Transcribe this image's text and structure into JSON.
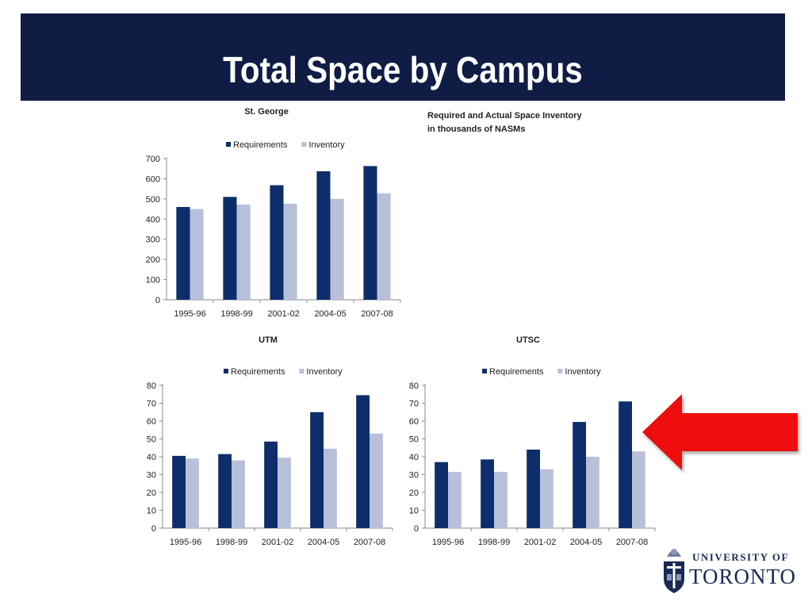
{
  "slide": {
    "title": "Total Space by Campus",
    "note_line1": "Required and Actual Space Inventory",
    "note_line2": "in thousands of NASMs"
  },
  "logo": {
    "line1": "UNIVERSITY OF",
    "line2": "TORONTO"
  },
  "colors": {
    "requirements": "#0d2d6b",
    "inventory": "#b7bfd9",
    "header": "#0f1d45",
    "arrow": "#ee1111"
  },
  "chart_data": [
    {
      "type": "bar",
      "title": "St. George",
      "categories": [
        "1995-96",
        "1998-99",
        "2001-02",
        "2004-05",
        "2007-08"
      ],
      "series": [
        {
          "name": "Requirements",
          "values": [
            460,
            510,
            568,
            637,
            663
          ]
        },
        {
          "name": "Inventory",
          "values": [
            450,
            472,
            476,
            500,
            528
          ]
        }
      ],
      "ylim": [
        0,
        700
      ],
      "yticks": [
        0,
        100,
        200,
        300,
        400,
        500,
        600,
        700
      ],
      "legend": "top"
    },
    {
      "type": "bar",
      "title": "UTM",
      "categories": [
        "1995-96",
        "1998-99",
        "2001-02",
        "2004-05",
        "2007-08"
      ],
      "series": [
        {
          "name": "Requirements",
          "values": [
            40.5,
            41.5,
            48.5,
            65,
            74.5
          ]
        },
        {
          "name": "Inventory",
          "values": [
            39,
            38,
            39.5,
            44.5,
            53
          ]
        }
      ],
      "ylim": [
        0,
        80
      ],
      "yticks": [
        0,
        10,
        20,
        30,
        40,
        50,
        60,
        70,
        80
      ],
      "legend": "top"
    },
    {
      "type": "bar",
      "title": "UTSC",
      "categories": [
        "1995-96",
        "1998-99",
        "2001-02",
        "2004-05",
        "2007-08"
      ],
      "series": [
        {
          "name": "Requirements",
          "values": [
            37,
            38.5,
            44,
            59.5,
            71
          ]
        },
        {
          "name": "Inventory",
          "values": [
            31.5,
            31.5,
            33,
            40,
            43
          ]
        }
      ],
      "ylim": [
        0,
        80
      ],
      "yticks": [
        0,
        10,
        20,
        30,
        40,
        50,
        60,
        70,
        80
      ],
      "legend": "top"
    }
  ]
}
